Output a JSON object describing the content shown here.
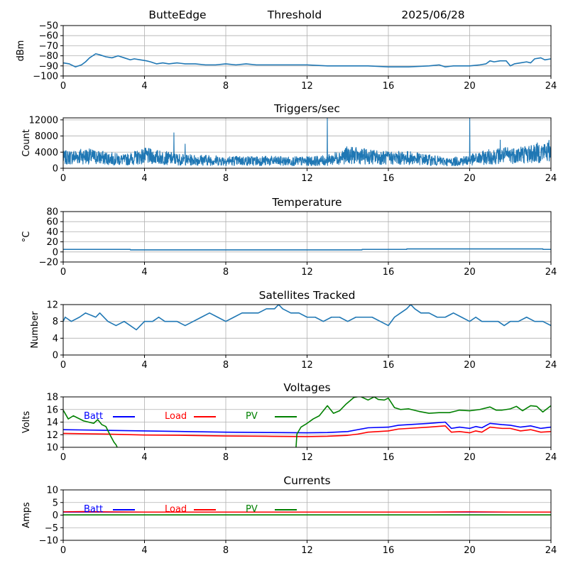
{
  "header": {
    "station": "ButteEdge",
    "mode": "Threshold",
    "date": "2025/06/28"
  },
  "colors": {
    "series": "#1f77b4",
    "batt": "#0000ff",
    "load": "#ff0000",
    "pv": "#008000",
    "grid": "#b0b0b0"
  },
  "chart_data": [
    {
      "id": "signal",
      "type": "line",
      "title": "",
      "xlabel": "",
      "ylabel": "dBm",
      "xlim": [
        0,
        24
      ],
      "ylim": [
        -100,
        -50
      ],
      "xticks": [
        0,
        4,
        8,
        12,
        16,
        20,
        24
      ],
      "yticks": [
        -100,
        -90,
        -80,
        -70,
        -60,
        -50
      ],
      "grid": true,
      "series": [
        {
          "x": [
            0,
            0.3,
            0.6,
            0.9,
            1.1,
            1.3,
            1.6,
            1.8,
            2.1,
            2.4,
            2.7,
            3.0,
            3.3,
            3.5,
            3.8,
            4.1,
            4.3,
            4.6,
            4.9,
            5.2,
            5.6,
            6.0,
            6.5,
            7.0,
            7.5,
            8.0,
            8.5,
            9.0,
            9.5,
            10,
            11,
            12,
            13,
            14,
            15,
            16,
            17,
            18,
            18.5,
            18.8,
            19.2,
            19.6,
            20,
            20.5,
            20.8,
            21.0,
            21.2,
            21.5,
            21.8,
            22.0,
            22.2,
            22.5,
            22.8,
            23.0,
            23.2,
            23.5,
            23.7,
            24
          ],
          "y": [
            -87,
            -88,
            -91,
            -89,
            -86,
            -82,
            -78,
            -79,
            -81,
            -82,
            -80,
            -82,
            -84,
            -83,
            -84,
            -85,
            -86,
            -88,
            -87,
            -88,
            -87,
            -88,
            -88,
            -89,
            -89,
            -88,
            -89,
            -88,
            -89,
            -89,
            -89,
            -89,
            -90,
            -90,
            -90,
            -91,
            -91,
            -90,
            -89,
            -91,
            -90,
            -90,
            -90,
            -89,
            -88,
            -85,
            -86,
            -85,
            -85,
            -90,
            -88,
            -87,
            -86,
            -87,
            -83,
            -82,
            -84,
            -83
          ]
        }
      ]
    },
    {
      "id": "triggers",
      "type": "line",
      "title": "Triggers/sec",
      "xlabel": "",
      "ylabel": "Count",
      "xlim": [
        0,
        24
      ],
      "ylim": [
        0,
        12500
      ],
      "xticks": [
        0,
        4,
        8,
        12,
        16,
        20,
        24
      ],
      "yticks": [
        0,
        4000,
        8000,
        12000
      ],
      "grid": true,
      "spikes": [
        {
          "x": 5.45,
          "y": 8800
        },
        {
          "x": 6.0,
          "y": 6000
        },
        {
          "x": 13.0,
          "y": 12500
        },
        {
          "x": 20.0,
          "y": 12500
        },
        {
          "x": 21.5,
          "y": 7000
        }
      ],
      "series": [
        {
          "x": [
            0,
            1,
            2,
            3,
            4,
            5,
            6,
            7,
            8,
            9,
            10,
            11,
            12,
            13,
            14,
            15,
            16,
            17,
            18,
            19,
            20,
            21,
            22,
            23,
            24
          ],
          "y": [
            2500,
            3000,
            2500,
            2000,
            3000,
            2500,
            2000,
            2000,
            1800,
            1800,
            1800,
            1700,
            1700,
            1900,
            3200,
            2800,
            2500,
            2500,
            2000,
            1500,
            2000,
            2800,
            3200,
            3500,
            4200
          ]
        }
      ]
    },
    {
      "id": "temperature",
      "type": "line",
      "title": "Temperature",
      "xlabel": "",
      "ylabel": "°C",
      "xlim": [
        0,
        24
      ],
      "ylim": [
        -20,
        80
      ],
      "xticks": [
        0,
        4,
        8,
        12,
        16,
        20,
        24
      ],
      "yticks": [
        -20,
        0,
        20,
        40,
        60,
        80
      ],
      "grid": true,
      "series": [
        {
          "x": [
            0,
            3.3,
            3.31,
            14.7,
            14.71,
            16.9,
            16.91,
            23.6,
            23.61,
            24
          ],
          "y": [
            5,
            5,
            4,
            4,
            5,
            5,
            6,
            6,
            5,
            5
          ]
        }
      ]
    },
    {
      "id": "satellites",
      "type": "line",
      "title": "Satellites Tracked",
      "xlabel": "",
      "ylabel": "Number",
      "xlim": [
        0,
        24
      ],
      "ylim": [
        0,
        12
      ],
      "xticks": [
        0,
        4,
        8,
        12,
        16,
        20,
        24
      ],
      "yticks": [
        0,
        4,
        8,
        12
      ],
      "grid": true,
      "series": [
        {
          "x": [
            0,
            0.1,
            0.4,
            0.8,
            1.1,
            1.6,
            1.8,
            2.2,
            2.6,
            3.0,
            3.3,
            3.6,
            3.8,
            4.0,
            4.4,
            4.7,
            5.0,
            5.2,
            5.6,
            6.0,
            6.4,
            6.8,
            7.2,
            7.6,
            8.0,
            8.4,
            8.8,
            9.2,
            9.6,
            10.0,
            10.4,
            10.6,
            10.8,
            11.2,
            11.6,
            12.0,
            12.4,
            12.8,
            13.2,
            13.6,
            14.0,
            14.4,
            14.8,
            15.2,
            15.6,
            16.0,
            16.3,
            16.6,
            16.9,
            17.1,
            17.3,
            17.6,
            18.0,
            18.4,
            18.8,
            19.2,
            19.6,
            20.0,
            20.3,
            20.6,
            21.0,
            21.4,
            21.7,
            22.0,
            22.4,
            22.8,
            23.2,
            23.6,
            24
          ],
          "y": [
            8,
            9,
            8,
            9,
            10,
            9,
            10,
            8,
            7,
            8,
            7,
            6,
            7,
            8,
            8,
            9,
            8,
            8,
            8,
            7,
            8,
            9,
            10,
            9,
            8,
            9,
            10,
            10,
            10,
            11,
            11,
            12,
            11,
            10,
            10,
            9,
            9,
            8,
            9,
            9,
            8,
            9,
            9,
            9,
            8,
            7,
            9,
            10,
            11,
            12,
            11,
            10,
            10,
            9,
            9,
            10,
            9,
            8,
            9,
            8,
            8,
            8,
            7,
            8,
            8,
            9,
            8,
            8,
            7
          ]
        }
      ]
    },
    {
      "id": "voltages",
      "type": "line",
      "title": "Voltages",
      "xlabel": "",
      "ylabel": "Volts",
      "xlim": [
        0,
        24
      ],
      "ylim": [
        10,
        18
      ],
      "xticks": [
        0,
        4,
        8,
        12,
        16,
        20,
        24
      ],
      "yticks": [
        10,
        12,
        14,
        16,
        18
      ],
      "grid": true,
      "legend": [
        "Batt",
        "Load",
        "PV"
      ],
      "series": [
        {
          "name": "Batt",
          "color": "#0000ff",
          "x": [
            0,
            2,
            4,
            6,
            8,
            10,
            12,
            13,
            14,
            14.5,
            15,
            16,
            16.5,
            17,
            18,
            18.8,
            19.1,
            19.5,
            20,
            20.3,
            20.6,
            21,
            21.3,
            21.6,
            22,
            22.5,
            23,
            23.5,
            24
          ],
          "y": [
            12.8,
            12.7,
            12.6,
            12.5,
            12.4,
            12.35,
            12.3,
            12.35,
            12.5,
            12.8,
            13.1,
            13.2,
            13.5,
            13.6,
            13.8,
            14.0,
            13.0,
            13.2,
            13.0,
            13.3,
            13.1,
            13.8,
            13.7,
            13.6,
            13.5,
            13.2,
            13.4,
            13.0,
            13.2
          ]
        },
        {
          "name": "Load",
          "color": "#ff0000",
          "x": [
            0,
            2,
            4,
            6,
            8,
            10,
            12,
            13,
            14,
            14.5,
            15,
            16,
            16.5,
            17,
            18,
            18.8,
            19.1,
            19.5,
            20,
            20.3,
            20.6,
            21,
            21.3,
            21.6,
            22,
            22.5,
            23,
            23.5,
            24
          ],
          "y": [
            12.2,
            12.1,
            11.95,
            11.9,
            11.8,
            11.75,
            11.7,
            11.75,
            11.9,
            12.1,
            12.4,
            12.6,
            12.9,
            13.0,
            13.2,
            13.4,
            12.4,
            12.5,
            12.3,
            12.6,
            12.4,
            13.2,
            13.1,
            13.0,
            13.0,
            12.6,
            12.8,
            12.4,
            12.5
          ]
        },
        {
          "name": "PV",
          "color": "#008000",
          "x": [
            0,
            0.25,
            0.5,
            1.0,
            1.5,
            1.7,
            1.9,
            2.1,
            2.3,
            2.5,
            2.6,
            2.7,
            11.45,
            11.5,
            11.7,
            12.0,
            12.3,
            12.6,
            13.0,
            13.3,
            13.6,
            13.9,
            14.3,
            14.6,
            15.0,
            15.3,
            15.5,
            15.8,
            16.0,
            16.3,
            16.6,
            17.0,
            17.5,
            18.0,
            18.5,
            19.0,
            19.5,
            20.0,
            20.5,
            21.0,
            21.3,
            21.6,
            22.0,
            22.3,
            22.6,
            22.8,
            23.0,
            23.3,
            23.6,
            24
          ],
          "y": [
            15.9,
            14.5,
            15.0,
            14.2,
            13.8,
            14.4,
            13.6,
            13.3,
            12.0,
            10.8,
            10.4,
            9.7,
            9.7,
            12.1,
            13.2,
            13.8,
            14.5,
            15.0,
            16.6,
            15.4,
            15.8,
            16.8,
            17.9,
            18.1,
            17.5,
            18.0,
            17.6,
            17.5,
            17.8,
            16.3,
            16.0,
            16.1,
            15.7,
            15.4,
            15.5,
            15.5,
            15.9,
            15.8,
            16.0,
            16.4,
            15.9,
            15.9,
            16.1,
            16.5,
            15.8,
            16.2,
            16.6,
            16.5,
            15.6,
            16.6
          ]
        }
      ]
    },
    {
      "id": "currents",
      "type": "line",
      "title": "Currents",
      "xlabel": "",
      "ylabel": "Amps",
      "xlim": [
        0,
        24
      ],
      "ylim": [
        -10,
        10
      ],
      "xticks": [
        0,
        4,
        8,
        12,
        16,
        20,
        24
      ],
      "yticks": [
        -10,
        -5,
        0,
        5,
        10
      ],
      "grid": true,
      "legend": [
        "Batt",
        "Load",
        "PV"
      ],
      "series": [
        {
          "name": "Batt",
          "color": "#0000ff",
          "x": [
            0,
            24
          ],
          "y": [
            1.2,
            1.2
          ]
        },
        {
          "name": "Load",
          "color": "#ff0000",
          "x": [
            0,
            1,
            2,
            4,
            8,
            12,
            16,
            18,
            20,
            22,
            24
          ],
          "y": [
            1.3,
            1.4,
            1.3,
            1.2,
            1.2,
            1.2,
            1.2,
            1.2,
            1.3,
            1.2,
            1.2
          ]
        },
        {
          "name": "PV",
          "color": "#008000",
          "x": [
            0,
            24
          ],
          "y": [
            0.1,
            0.1
          ]
        }
      ]
    }
  ]
}
